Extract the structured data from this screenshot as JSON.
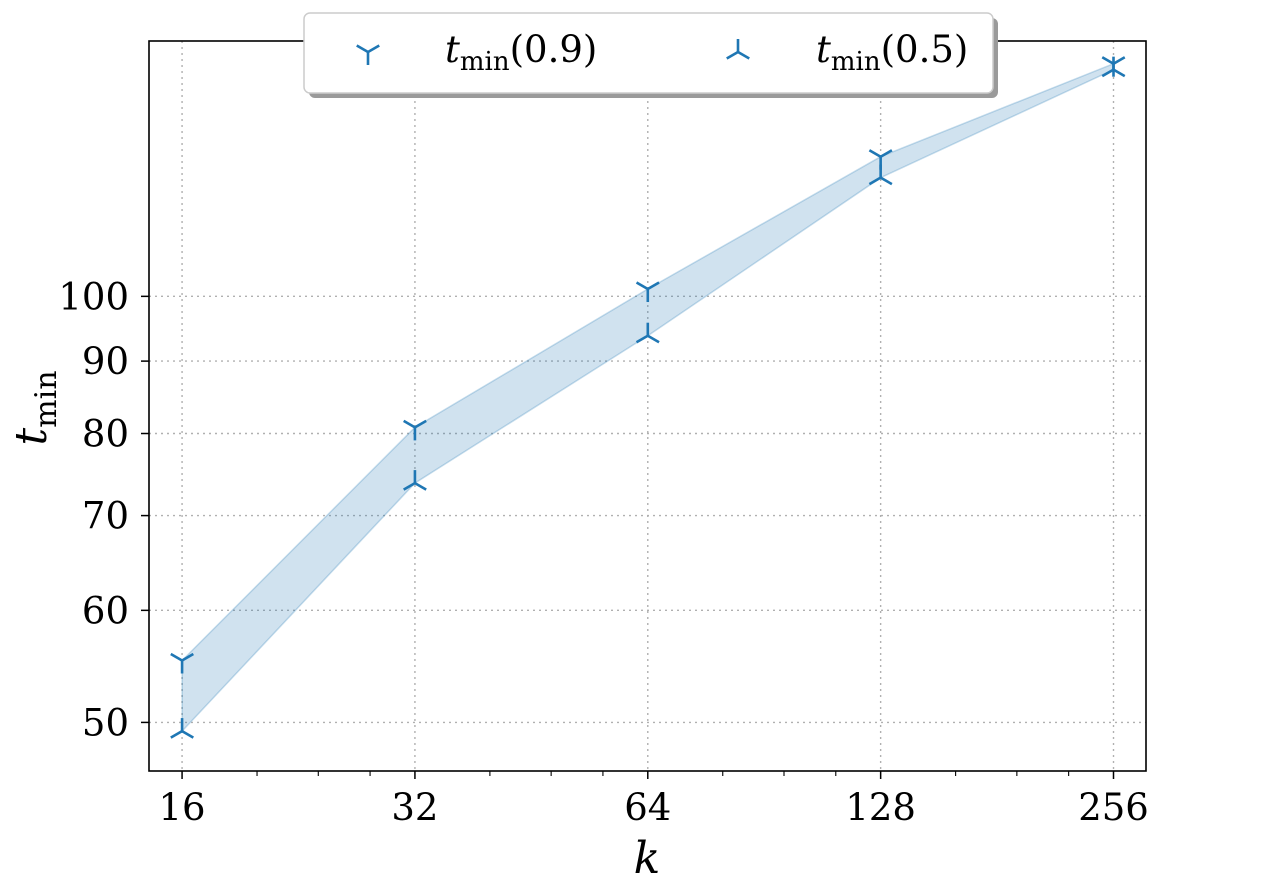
{
  "chart_data": {
    "type": "scatter",
    "xscale": "log2",
    "yscale": "log",
    "x": [
      16,
      32,
      64,
      128,
      256
    ],
    "xticks": [
      "16",
      "32",
      "64",
      "128",
      "256"
    ],
    "yticks": [
      50,
      60,
      70,
      80,
      90,
      100
    ],
    "ytick_labels": [
      "50",
      "60",
      "70",
      "80",
      "90",
      "100"
    ],
    "xlabel": "k",
    "ylabel": {
      "main": "t",
      "sub": "min"
    },
    "xlim": [
      14.5,
      282
    ],
    "ylim": [
      46.2,
      151.5
    ],
    "grid": true,
    "legend": {
      "placement": "top-center"
    },
    "series": [
      {
        "name": {
          "main": "t",
          "sub": "min",
          "suffix": "(0.9)"
        },
        "marker": "tri_down",
        "values": [
          55.3,
          80.8,
          101.2,
          125.5,
          146
        ]
      },
      {
        "name": {
          "main": "t",
          "sub": "min",
          "suffix": "(0.5)"
        },
        "marker": "tri_up",
        "values": [
          49.3,
          73.8,
          93.8,
          121.3,
          144.6
        ]
      }
    ],
    "band": {
      "between": [
        "series.0",
        "series.1"
      ]
    },
    "colors": {
      "marker": "#1f77b4",
      "band": "#1f77b4",
      "grid": "#b0b0b0"
    }
  }
}
